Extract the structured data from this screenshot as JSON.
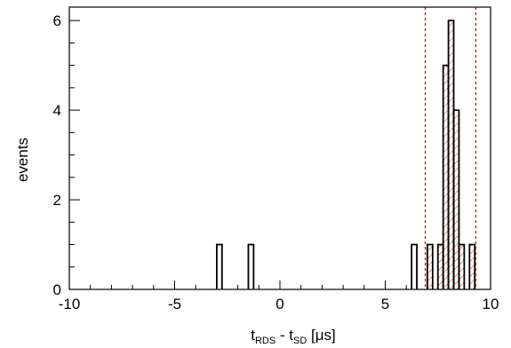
{
  "chart_data": {
    "type": "histogram",
    "bin_width": 0.25,
    "xlim": [
      -10,
      10
    ],
    "ylim": [
      0,
      6.3
    ],
    "xticks": [
      -10,
      -5,
      0,
      5,
      10
    ],
    "xtick_labels": [
      "-10",
      "-5",
      "0",
      "5",
      "10"
    ],
    "yticks": [
      0,
      2,
      4,
      6
    ],
    "ytick_labels": [
      "0",
      "2",
      "4",
      "6"
    ],
    "ylabel": "events",
    "xlabel": {
      "t1": "t",
      "sub1": "RDS",
      "mid": " - t",
      "sub2": "SD",
      "unit": " [μs]"
    },
    "bins": [
      {
        "x0": -3.0,
        "x1": -2.75,
        "count": 1
      },
      {
        "x0": -1.5,
        "x1": -1.25,
        "count": 1
      },
      {
        "x0": 6.25,
        "x1": 6.5,
        "count": 1
      },
      {
        "x0": 7.0,
        "x1": 7.25,
        "count": 1
      },
      {
        "x0": 7.25,
        "x1": 7.5,
        "count": 0
      },
      {
        "x0": 7.5,
        "x1": 7.75,
        "count": 1
      },
      {
        "x0": 7.75,
        "x1": 8.0,
        "count": 5
      },
      {
        "x0": 8.0,
        "x1": 8.25,
        "count": 6
      },
      {
        "x0": 8.25,
        "x1": 8.5,
        "count": 4
      },
      {
        "x0": 8.5,
        "x1": 8.75,
        "count": 1
      },
      {
        "x0": 8.75,
        "x1": 9.0,
        "count": 0
      },
      {
        "x0": 9.0,
        "x1": 9.25,
        "count": 1
      }
    ],
    "hatched_range": [
      7.0,
      9.25
    ],
    "cut_lines": [
      6.9,
      9.3
    ],
    "colors": {
      "hist": "#000000",
      "hatch": "#e03030",
      "cut_line": "#e00000"
    }
  }
}
